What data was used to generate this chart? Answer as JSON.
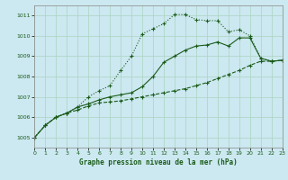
{
  "title": "Graphe pression niveau de la mer (hPa)",
  "bg_color": "#cce8f0",
  "grid_color": "#aad4c0",
  "line_color": "#1a5c1a",
  "xlim": [
    0,
    23
  ],
  "ylim": [
    1004.5,
    1011.5
  ],
  "yticks": [
    1005,
    1006,
    1007,
    1008,
    1009,
    1010,
    1011
  ],
  "xticks": [
    0,
    1,
    2,
    3,
    4,
    5,
    6,
    7,
    8,
    9,
    10,
    11,
    12,
    13,
    14,
    15,
    16,
    17,
    18,
    19,
    20,
    21,
    22,
    23
  ],
  "line1_x": [
    0,
    1,
    2,
    3,
    4,
    5,
    6,
    7,
    8,
    9,
    10,
    11,
    12,
    13,
    14,
    15,
    16,
    17,
    18,
    19,
    20,
    21,
    22,
    23
  ],
  "line1_y": [
    1005.0,
    1005.6,
    1006.0,
    1006.2,
    1006.5,
    1007.0,
    1007.3,
    1007.55,
    1008.3,
    1009.0,
    1010.1,
    1010.35,
    1010.6,
    1011.05,
    1011.05,
    1010.8,
    1010.75,
    1010.75,
    1010.2,
    1010.3,
    1010.0,
    1008.9,
    1008.75,
    1008.8
  ],
  "line2_x": [
    0,
    1,
    2,
    3,
    4,
    5,
    6,
    7,
    8,
    9,
    10,
    11,
    12,
    13,
    14,
    15,
    16,
    17,
    18,
    19,
    20,
    21,
    22,
    23
  ],
  "line2_y": [
    1005.0,
    1005.6,
    1006.0,
    1006.2,
    1006.5,
    1006.65,
    1006.85,
    1007.0,
    1007.1,
    1007.2,
    1007.5,
    1008.0,
    1008.7,
    1009.0,
    1009.3,
    1009.5,
    1009.55,
    1009.7,
    1009.5,
    1009.9,
    1009.9,
    1008.9,
    1008.75,
    1008.8
  ],
  "line3_x": [
    0,
    1,
    2,
    3,
    4,
    5,
    6,
    7,
    8,
    9,
    10,
    11,
    12,
    13,
    14,
    15,
    16,
    17,
    18,
    19,
    20,
    21,
    22,
    23
  ],
  "line3_y": [
    1005.0,
    1005.6,
    1006.0,
    1006.2,
    1006.35,
    1006.55,
    1006.7,
    1006.75,
    1006.8,
    1006.9,
    1007.0,
    1007.1,
    1007.2,
    1007.3,
    1007.4,
    1007.55,
    1007.7,
    1007.9,
    1008.1,
    1008.3,
    1008.55,
    1008.75,
    1008.75,
    1008.8
  ]
}
